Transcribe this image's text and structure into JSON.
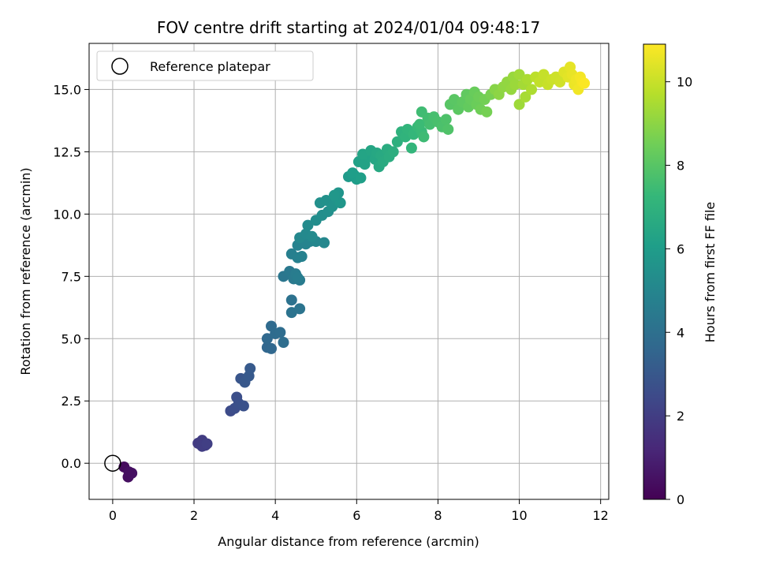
{
  "chart_data": {
    "type": "scatter",
    "title": "FOV centre drift starting at 2024/01/04 09:48:17",
    "xlabel": "Angular distance from reference (arcmin)",
    "ylabel": "Rotation from reference (arcmin)",
    "xlim": [
      -0.58,
      12.2
    ],
    "ylim": [
      -1.45,
      16.85
    ],
    "x_ticks": [
      0,
      2,
      4,
      6,
      8,
      10,
      12
    ],
    "x_tick_labels": [
      "0",
      "2",
      "4",
      "6",
      "8",
      "10",
      "12"
    ],
    "y_ticks": [
      0.0,
      2.5,
      5.0,
      7.5,
      10.0,
      12.5,
      15.0
    ],
    "y_tick_labels": [
      "0.0",
      "2.5",
      "5.0",
      "7.5",
      "10.0",
      "12.5",
      "15.0"
    ],
    "grid": true,
    "legend": {
      "placement": "top-left",
      "entries": [
        "Reference platepar"
      ]
    },
    "reference_point": {
      "x": 0,
      "y": 0,
      "label": "Reference platepar"
    },
    "colorbar": {
      "label": "Hours from first FF file",
      "colormap": "viridis",
      "range": [
        0,
        10.9
      ],
      "ticks": [
        0,
        2,
        4,
        6,
        8,
        10
      ],
      "tick_labels": [
        "0",
        "2",
        "4",
        "6",
        "8",
        "10"
      ]
    },
    "colormap_stops": [
      "#440154",
      "#482878",
      "#3e4989",
      "#31688e",
      "#26828e",
      "#1f9e89",
      "#35b779",
      "#6ece58",
      "#b5de2b",
      "#fde725"
    ],
    "points": [
      [
        0.28,
        -0.15,
        0.3
      ],
      [
        0.38,
        -0.55,
        0.4
      ],
      [
        0.47,
        -0.4,
        0.5
      ],
      [
        0.4,
        -0.35,
        0.45
      ],
      [
        2.1,
        0.8,
        1.9
      ],
      [
        2.2,
        0.92,
        1.95
      ],
      [
        2.28,
        0.72,
        2.0
      ],
      [
        2.2,
        0.68,
        2.0
      ],
      [
        2.32,
        0.78,
        2.05
      ],
      [
        2.9,
        2.1,
        2.5
      ],
      [
        3.0,
        2.2,
        2.6
      ],
      [
        3.05,
        2.65,
        2.65
      ],
      [
        3.1,
        2.4,
        2.7
      ],
      [
        3.22,
        2.3,
        2.75
      ],
      [
        3.15,
        3.4,
        2.9
      ],
      [
        3.25,
        3.25,
        3.0
      ],
      [
        3.35,
        3.5,
        3.05
      ],
      [
        3.38,
        3.8,
        3.1
      ],
      [
        3.8,
        4.65,
        3.6
      ],
      [
        3.9,
        4.6,
        3.65
      ],
      [
        3.8,
        5.0,
        3.7
      ],
      [
        3.9,
        5.5,
        3.75
      ],
      [
        4.0,
        5.2,
        3.8
      ],
      [
        4.12,
        5.25,
        3.85
      ],
      [
        4.2,
        4.85,
        3.9
      ],
      [
        4.4,
        6.55,
        4.1
      ],
      [
        4.4,
        6.05,
        4.15
      ],
      [
        4.6,
        6.2,
        4.2
      ],
      [
        4.2,
        7.5,
        4.3
      ],
      [
        4.35,
        7.7,
        4.4
      ],
      [
        4.45,
        7.4,
        4.45
      ],
      [
        4.6,
        7.35,
        4.5
      ],
      [
        4.5,
        7.6,
        4.55
      ],
      [
        4.55,
        7.45,
        4.6
      ],
      [
        4.4,
        8.4,
        4.7
      ],
      [
        4.55,
        8.25,
        4.75
      ],
      [
        4.65,
        8.3,
        4.8
      ],
      [
        4.55,
        8.75,
        4.85
      ],
      [
        4.75,
        8.8,
        4.9
      ],
      [
        4.85,
        8.9,
        4.95
      ],
      [
        5.0,
        8.9,
        5.0
      ],
      [
        5.2,
        8.85,
        5.05
      ],
      [
        4.6,
        9.05,
        5.1
      ],
      [
        4.75,
        9.2,
        5.15
      ],
      [
        4.9,
        9.1,
        5.2
      ],
      [
        4.8,
        9.55,
        5.25
      ],
      [
        5.0,
        9.75,
        5.3
      ],
      [
        5.15,
        9.95,
        5.35
      ],
      [
        5.3,
        10.1,
        5.4
      ],
      [
        5.1,
        10.45,
        5.45
      ],
      [
        5.25,
        10.55,
        5.5
      ],
      [
        5.4,
        10.3,
        5.55
      ],
      [
        5.5,
        10.6,
        5.6
      ],
      [
        5.55,
        10.85,
        5.65
      ],
      [
        5.6,
        10.45,
        5.7
      ],
      [
        5.45,
        10.75,
        5.75
      ],
      [
        5.8,
        11.5,
        5.9
      ],
      [
        5.95,
        11.55,
        5.95
      ],
      [
        6.0,
        11.4,
        6.0
      ],
      [
        5.9,
        11.65,
        6.05
      ],
      [
        6.1,
        11.45,
        6.1
      ],
      [
        6.05,
        12.1,
        6.2
      ],
      [
        6.2,
        12.0,
        6.25
      ],
      [
        6.3,
        12.3,
        6.3
      ],
      [
        6.15,
        12.4,
        6.35
      ],
      [
        6.35,
        12.55,
        6.4
      ],
      [
        6.45,
        12.2,
        6.45
      ],
      [
        6.5,
        12.45,
        6.5
      ],
      [
        6.55,
        11.9,
        6.55
      ],
      [
        6.6,
        12.35,
        6.6
      ],
      [
        6.65,
        12.1,
        6.65
      ],
      [
        6.75,
        12.6,
        6.7
      ],
      [
        6.8,
        12.3,
        6.75
      ],
      [
        6.9,
        12.5,
        6.8
      ],
      [
        7.0,
        12.9,
        6.9
      ],
      [
        7.1,
        13.3,
        7.0
      ],
      [
        7.2,
        13.1,
        7.05
      ],
      [
        7.25,
        13.4,
        7.1
      ],
      [
        7.35,
        12.65,
        7.15
      ],
      [
        7.4,
        13.2,
        7.2
      ],
      [
        7.5,
        13.5,
        7.3
      ],
      [
        7.6,
        13.3,
        7.35
      ],
      [
        7.55,
        13.6,
        7.4
      ],
      [
        7.65,
        13.1,
        7.45
      ],
      [
        7.6,
        14.1,
        7.5
      ],
      [
        7.75,
        13.85,
        7.55
      ],
      [
        7.8,
        13.6,
        7.6
      ],
      [
        7.9,
        13.9,
        7.65
      ],
      [
        8.0,
        13.7,
        7.7
      ],
      [
        8.1,
        13.5,
        7.75
      ],
      [
        8.2,
        13.8,
        7.8
      ],
      [
        8.25,
        13.4,
        7.85
      ],
      [
        8.3,
        14.4,
        8.0
      ],
      [
        8.4,
        14.6,
        8.05
      ],
      [
        8.5,
        14.2,
        8.1
      ],
      [
        8.6,
        14.5,
        8.15
      ],
      [
        8.7,
        14.8,
        8.2
      ],
      [
        8.75,
        14.3,
        8.25
      ],
      [
        8.8,
        14.6,
        8.3
      ],
      [
        8.9,
        14.9,
        8.35
      ],
      [
        8.95,
        14.4,
        8.4
      ],
      [
        9.0,
        14.7,
        8.45
      ],
      [
        9.05,
        14.2,
        8.5
      ],
      [
        9.15,
        14.6,
        8.55
      ],
      [
        9.2,
        14.1,
        8.6
      ],
      [
        9.3,
        14.8,
        8.65
      ],
      [
        9.4,
        15.0,
        8.9
      ],
      [
        9.5,
        14.8,
        9.0
      ],
      [
        9.6,
        15.1,
        9.05
      ],
      [
        9.7,
        15.3,
        9.1
      ],
      [
        9.8,
        15.0,
        9.15
      ],
      [
        9.85,
        15.5,
        9.2
      ],
      [
        9.9,
        15.2,
        9.25
      ],
      [
        10.0,
        14.4,
        9.3
      ],
      [
        10.0,
        15.6,
        9.35
      ],
      [
        10.1,
        15.2,
        9.4
      ],
      [
        10.15,
        14.7,
        9.45
      ],
      [
        10.2,
        15.4,
        9.5
      ],
      [
        10.3,
        15.0,
        9.55
      ],
      [
        10.4,
        15.5,
        9.8
      ],
      [
        10.5,
        15.3,
        9.9
      ],
      [
        10.6,
        15.6,
        9.95
      ],
      [
        10.7,
        15.2,
        10.0
      ],
      [
        10.8,
        15.4,
        10.05
      ],
      [
        10.9,
        15.5,
        10.1
      ],
      [
        11.0,
        15.3,
        10.15
      ],
      [
        11.1,
        15.7,
        10.4
      ],
      [
        11.2,
        15.5,
        10.45
      ],
      [
        11.25,
        15.9,
        10.5
      ],
      [
        11.3,
        15.6,
        10.55
      ],
      [
        11.35,
        15.2,
        10.6
      ],
      [
        11.4,
        15.4,
        10.65
      ],
      [
        11.45,
        15.0,
        10.7
      ],
      [
        11.5,
        15.5,
        10.75
      ],
      [
        11.55,
        15.3,
        10.8
      ],
      [
        11.6,
        15.25,
        10.85
      ]
    ]
  }
}
